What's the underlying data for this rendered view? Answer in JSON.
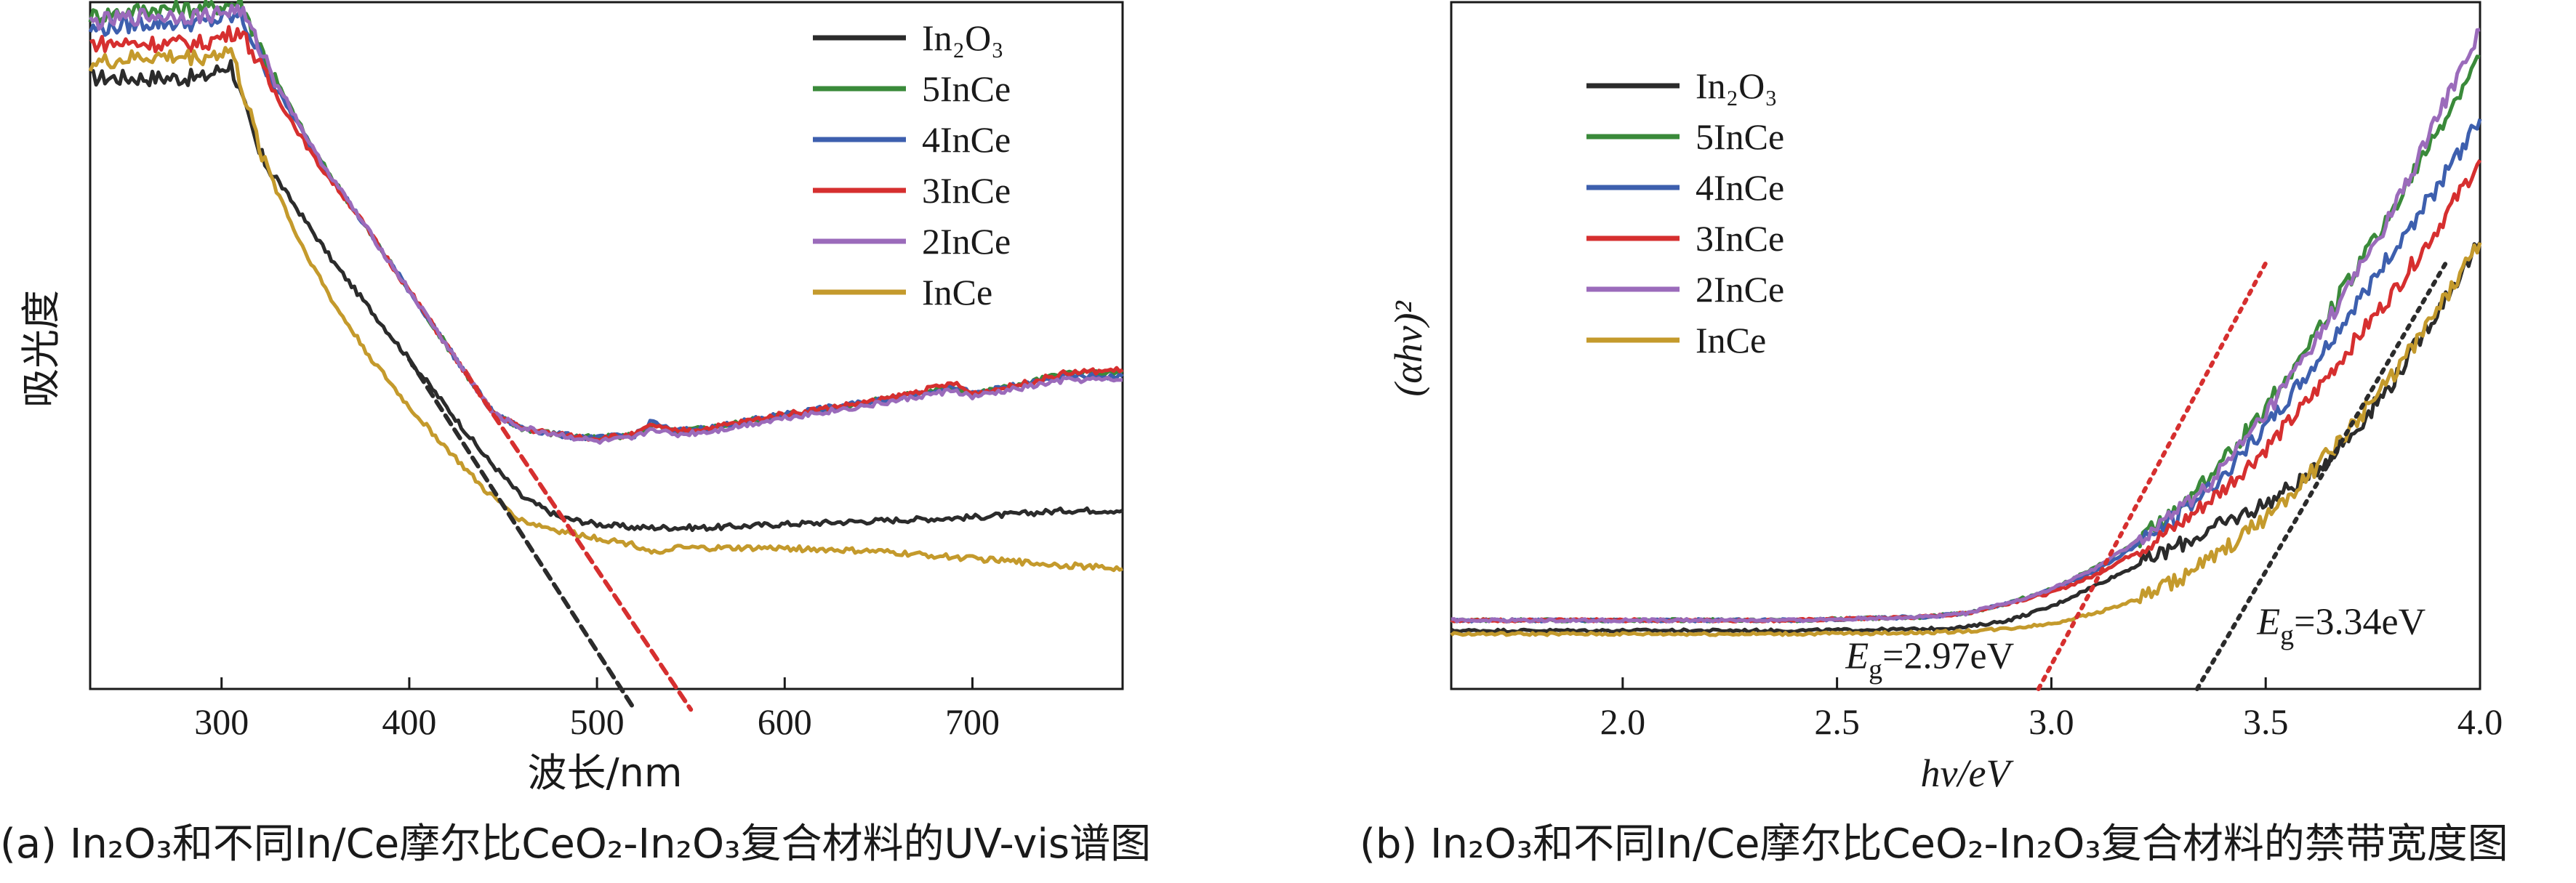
{
  "chart_data": [
    {
      "panel": "a",
      "type": "line",
      "title": "",
      "caption": "(a) In₂O₃和不同In/Ce摩尔比CeO₂-In₂O₃复合材料的UV-vis谱图",
      "xlabel": "波长/nm",
      "ylabel": "吸光度",
      "xlim": [
        230,
        780
      ],
      "ylim": [
        0,
        1
      ],
      "xticks": [
        300,
        400,
        500,
        600,
        700
      ],
      "yticks": [],
      "grid": false,
      "legend_position": "top-right",
      "series": [
        {
          "name": "In₂O₃",
          "color": "#2b2b2b",
          "x": [
            230,
            260,
            290,
            305,
            320,
            340,
            360,
            380,
            400,
            420,
            440,
            460,
            480,
            500,
            520,
            540,
            560,
            600,
            650,
            700,
            750,
            780
          ],
          "y": [
            0.89,
            0.89,
            0.89,
            0.91,
            0.78,
            0.7,
            0.62,
            0.55,
            0.48,
            0.41,
            0.34,
            0.28,
            0.25,
            0.24,
            0.235,
            0.235,
            0.235,
            0.24,
            0.245,
            0.25,
            0.26,
            0.26
          ]
        },
        {
          "name": "5InCe",
          "color": "#3a8a3a",
          "x": [
            230,
            260,
            290,
            310,
            330,
            350,
            370,
            390,
            410,
            430,
            445,
            460,
            480,
            500,
            520,
            530,
            540,
            560,
            600,
            650,
            690,
            700,
            720,
            750,
            780
          ],
          "y": [
            0.98,
            0.99,
            0.99,
            1.0,
            0.88,
            0.78,
            0.7,
            0.62,
            0.54,
            0.46,
            0.4,
            0.38,
            0.37,
            0.365,
            0.37,
            0.385,
            0.375,
            0.38,
            0.4,
            0.42,
            0.44,
            0.43,
            0.44,
            0.46,
            0.46
          ]
        },
        {
          "name": "4InCe",
          "color": "#3d5fae",
          "x": [
            230,
            260,
            290,
            310,
            330,
            350,
            370,
            390,
            410,
            430,
            445,
            460,
            480,
            500,
            520,
            530,
            540,
            560,
            600,
            650,
            690,
            700,
            720,
            750,
            780
          ],
          "y": [
            0.96,
            0.97,
            0.97,
            0.98,
            0.87,
            0.78,
            0.7,
            0.62,
            0.54,
            0.46,
            0.4,
            0.38,
            0.37,
            0.365,
            0.37,
            0.39,
            0.375,
            0.38,
            0.4,
            0.42,
            0.44,
            0.43,
            0.44,
            0.455,
            0.455
          ]
        },
        {
          "name": "3InCe",
          "color": "#d62f2f",
          "x": [
            230,
            260,
            290,
            310,
            330,
            350,
            370,
            390,
            410,
            430,
            445,
            460,
            480,
            500,
            520,
            530,
            540,
            560,
            600,
            650,
            690,
            700,
            720,
            750,
            780
          ],
          "y": [
            0.94,
            0.94,
            0.94,
            0.96,
            0.86,
            0.77,
            0.7,
            0.62,
            0.54,
            0.46,
            0.4,
            0.38,
            0.37,
            0.365,
            0.37,
            0.385,
            0.375,
            0.38,
            0.4,
            0.42,
            0.445,
            0.43,
            0.44,
            0.46,
            0.465
          ]
        },
        {
          "name": "2InCe",
          "color": "#9b6bbb",
          "x": [
            230,
            260,
            290,
            310,
            330,
            350,
            370,
            390,
            410,
            430,
            445,
            460,
            480,
            500,
            520,
            530,
            540,
            560,
            600,
            650,
            690,
            700,
            720,
            750,
            780
          ],
          "y": [
            0.97,
            0.98,
            0.98,
            0.99,
            0.88,
            0.78,
            0.7,
            0.62,
            0.54,
            0.46,
            0.4,
            0.38,
            0.37,
            0.36,
            0.365,
            0.38,
            0.37,
            0.375,
            0.395,
            0.415,
            0.435,
            0.425,
            0.435,
            0.45,
            0.45
          ]
        },
        {
          "name": "InCe",
          "color": "#c49a2c",
          "x": [
            230,
            260,
            290,
            305,
            320,
            340,
            360,
            380,
            400,
            420,
            440,
            460,
            480,
            500,
            520,
            535,
            540,
            560,
            600,
            650,
            700,
            750,
            780
          ],
          "y": [
            0.91,
            0.92,
            0.92,
            0.93,
            0.79,
            0.66,
            0.56,
            0.48,
            0.41,
            0.35,
            0.29,
            0.245,
            0.23,
            0.22,
            0.21,
            0.195,
            0.205,
            0.205,
            0.205,
            0.2,
            0.19,
            0.18,
            0.175
          ]
        }
      ],
      "tangent_lines": [
        {
          "color": "#2b2b2b",
          "x": [
            400,
            520
          ],
          "y": [
            0.48,
            -0.03
          ]
        },
        {
          "color": "#d62f2f",
          "x": [
            430,
            550
          ],
          "y": [
            0.46,
            -0.03
          ]
        }
      ]
    },
    {
      "panel": "b",
      "type": "line",
      "title": "",
      "caption": "(b) In₂O₃和不同In/Ce摩尔比CeO₂-In₂O₃复合材料的禁带宽度图",
      "xlabel": "hν/eV",
      "ylabel": "(αhν)²",
      "xlim": [
        1.6,
        4.0
      ],
      "ylim": [
        0,
        1
      ],
      "xticks": [
        2.0,
        2.5,
        3.0,
        3.5,
        4.0
      ],
      "yticks": [],
      "grid": false,
      "legend_position": "top-left",
      "series": [
        {
          "name": "In₂O₃",
          "color": "#2b2b2b",
          "x": [
            1.6,
            2.0,
            2.4,
            2.7,
            2.8,
            2.9,
            3.0,
            3.1,
            3.2,
            3.3,
            3.4,
            3.5,
            3.6,
            3.7,
            3.8,
            3.9,
            4.0
          ],
          "y": [
            0.085,
            0.085,
            0.085,
            0.087,
            0.09,
            0.1,
            0.12,
            0.15,
            0.18,
            0.21,
            0.24,
            0.27,
            0.31,
            0.37,
            0.45,
            0.55,
            0.65
          ]
        },
        {
          "name": "5InCe",
          "color": "#3a8a3a",
          "x": [
            1.6,
            2.0,
            2.4,
            2.7,
            2.8,
            2.9,
            3.0,
            3.1,
            3.2,
            3.3,
            3.4,
            3.5,
            3.6,
            3.7,
            3.8,
            3.9,
            4.0
          ],
          "y": [
            0.1,
            0.1,
            0.1,
            0.105,
            0.11,
            0.125,
            0.145,
            0.175,
            0.215,
            0.265,
            0.33,
            0.41,
            0.5,
            0.6,
            0.7,
            0.81,
            0.92
          ]
        },
        {
          "name": "4InCe",
          "color": "#3d5fae",
          "x": [
            1.6,
            2.0,
            2.4,
            2.7,
            2.8,
            2.9,
            3.0,
            3.1,
            3.2,
            3.3,
            3.4,
            3.5,
            3.6,
            3.7,
            3.8,
            3.9,
            4.0
          ],
          "y": [
            0.1,
            0.1,
            0.1,
            0.105,
            0.11,
            0.125,
            0.145,
            0.17,
            0.21,
            0.255,
            0.31,
            0.38,
            0.46,
            0.55,
            0.64,
            0.73,
            0.83
          ]
        },
        {
          "name": "3InCe",
          "color": "#d62f2f",
          "x": [
            1.6,
            2.0,
            2.4,
            2.7,
            2.8,
            2.9,
            3.0,
            3.1,
            3.2,
            3.3,
            3.4,
            3.5,
            3.6,
            3.7,
            3.8,
            3.9,
            4.0
          ],
          "y": [
            0.1,
            0.1,
            0.1,
            0.105,
            0.11,
            0.125,
            0.14,
            0.165,
            0.2,
            0.24,
            0.29,
            0.35,
            0.42,
            0.5,
            0.58,
            0.67,
            0.77
          ]
        },
        {
          "name": "2InCe",
          "color": "#9b6bbb",
          "x": [
            1.6,
            2.0,
            2.4,
            2.7,
            2.8,
            2.9,
            3.0,
            3.1,
            3.2,
            3.3,
            3.4,
            3.5,
            3.6,
            3.7,
            3.8,
            3.9,
            4.0
          ],
          "y": [
            0.1,
            0.1,
            0.1,
            0.105,
            0.11,
            0.125,
            0.145,
            0.175,
            0.215,
            0.26,
            0.32,
            0.4,
            0.49,
            0.59,
            0.7,
            0.83,
            0.96
          ]
        },
        {
          "name": "InCe",
          "color": "#c49a2c",
          "x": [
            1.6,
            2.0,
            2.4,
            2.7,
            2.8,
            2.9,
            3.0,
            3.1,
            3.2,
            3.3,
            3.4,
            3.5,
            3.6,
            3.7,
            3.8,
            3.9,
            4.0
          ],
          "y": [
            0.08,
            0.08,
            0.08,
            0.082,
            0.084,
            0.088,
            0.095,
            0.11,
            0.13,
            0.16,
            0.2,
            0.25,
            0.31,
            0.38,
            0.46,
            0.55,
            0.65
          ]
        }
      ],
      "tangent_lines": [
        {
          "color": "#d62f2f",
          "x": [
            2.97,
            3.5
          ],
          "y": [
            0.0,
            0.62
          ]
        },
        {
          "color": "#2b2b2b",
          "x": [
            3.34,
            3.92
          ],
          "y": [
            0.0,
            0.62
          ]
        }
      ],
      "annotations": [
        {
          "E": "E",
          "sub": "g",
          "value": "=2.97eV",
          "x": 2.52,
          "y": 0.03
        },
        {
          "E": "E",
          "sub": "g",
          "value": "=3.34eV",
          "x": 3.48,
          "y": 0.08
        }
      ]
    }
  ]
}
